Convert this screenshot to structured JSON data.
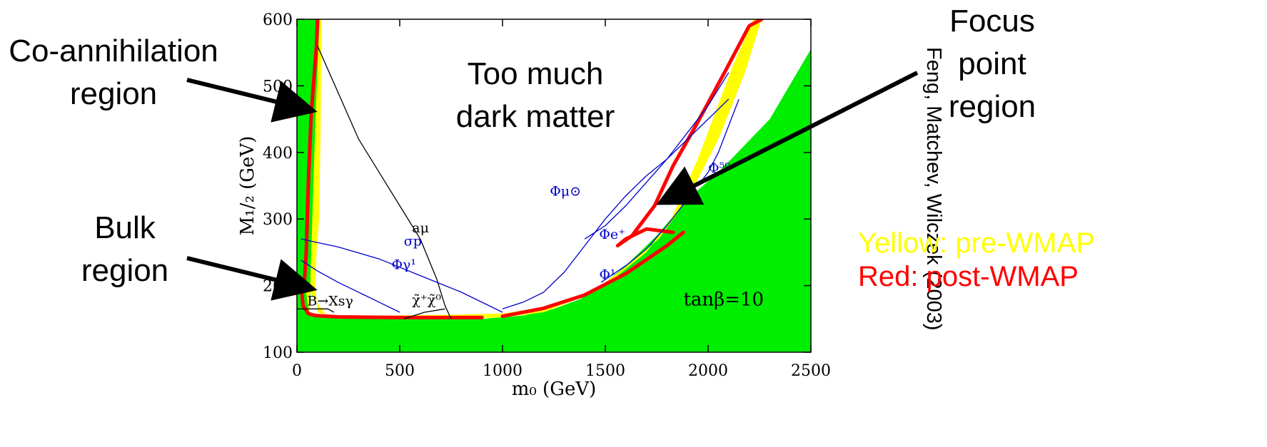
{
  "labels": {
    "coann": [
      "Co-annihilation",
      "region"
    ],
    "bulk": [
      "Bulk",
      "region"
    ],
    "focus": [
      "Focus",
      "point",
      "region"
    ],
    "toomuch": [
      "Too much",
      "dark matter"
    ],
    "credit": "Feng, Matchev, Wilczek (2003)",
    "legend_yellow": "Yellow: pre-WMAP",
    "legend_red": "Red: post-WMAP"
  },
  "colors": {
    "excluded": "#00ee00",
    "pre_wmap": "#ffff00",
    "post_wmap": "#ff0000",
    "contour_blue": "#0000cc",
    "contour_black": "#000000"
  },
  "chart_data": {
    "type": "area",
    "xlabel": "m₀ (GeV)",
    "ylabel": "M₁/₂ (GeV)",
    "xlim": [
      0,
      2500
    ],
    "ylim": [
      100,
      600
    ],
    "xticks": [
      "0",
      "500",
      "1000",
      "1500",
      "2000",
      "2500"
    ],
    "yticks": [
      "100",
      "200",
      "300",
      "400",
      "500",
      "600"
    ],
    "annotation": "tanβ=10",
    "series": [
      {
        "fill": "#00ee00",
        "x": [
          0,
          2500,
          2500,
          2300,
          2050,
          1900,
          1750,
          1600,
          1480,
          1380,
          1250,
          1100,
          900,
          700,
          400,
          200,
          60,
          90,
          120,
          0
        ],
        "y": [
          100,
          100,
          555,
          450,
          370,
          330,
          275,
          230,
          200,
          180,
          165,
          155,
          150,
          150,
          150,
          152,
          155,
          350,
          600,
          600
        ]
      },
      {
        "fill": "#ffff00",
        "x": [
          60,
          90,
          110,
          120,
          115,
          108,
          95,
          90,
          100,
          150,
          400,
          700,
          1000,
          1250,
          1500,
          1700,
          1820,
          1950,
          2120,
          2220,
          2260,
          2180,
          2050,
          1900,
          1760,
          1600,
          1460,
          1350,
          1200,
          1000,
          700,
          400,
          150,
          40
        ],
        "y": [
          155,
          450,
          600,
          600,
          430,
          300,
          250,
          200,
          160,
          155,
          155,
          156,
          158,
          170,
          200,
          250,
          300,
          390,
          530,
          600,
          600,
          520,
          420,
          330,
          270,
          228,
          196,
          178,
          160,
          152,
          150,
          150,
          152,
          200
        ]
      },
      {
        "name": "post-WMAP co-annihilation",
        "stroke": "#ff0000",
        "x": [
          35,
          45,
          55,
          68,
          80,
          95,
          100
        ],
        "y": [
          200,
          250,
          350,
          450,
          500,
          560,
          600
        ]
      },
      {
        "name": "post-WMAP bulk",
        "stroke": "#ff0000",
        "x": [
          20,
          30,
          55,
          90,
          200,
          500,
          900
        ],
        "y": [
          200,
          170,
          158,
          155,
          153,
          152,
          152
        ]
      },
      {
        "name": "post-WMAP funnel",
        "stroke": "#ff0000",
        "x": [
          1000,
          1200,
          1400,
          1600,
          1800,
          1880
        ],
        "y": [
          154,
          166,
          186,
          218,
          260,
          280
        ]
      },
      {
        "name": "post-WMAP focus point",
        "stroke": "#ff0000",
        "x": [
          1830,
          1700,
          1600,
          1560,
          1630,
          1740,
          1830,
          1940,
          2080,
          2200,
          2260
        ],
        "y": [
          280,
          285,
          270,
          260,
          275,
          320,
          380,
          440,
          520,
          590,
          600
        ]
      }
    ],
    "contours": [
      {
        "label": "aμ",
        "color": "#000000",
        "x": [
          100,
          200,
          300,
          420,
          520,
          600,
          680,
          720,
          750
        ],
        "y": [
          560,
          490,
          420,
          360,
          310,
          270,
          210,
          170,
          150
        ]
      },
      {
        "label": "σp",
        "color": "#0000cc",
        "x": [
          20,
          200,
          400,
          600,
          800,
          1000
        ],
        "y": [
          270,
          258,
          240,
          215,
          190,
          160
        ]
      },
      {
        "label": "Φγ¹",
        "color": "#0000cc",
        "x": [
          20,
          100,
          200,
          300,
          400,
          500
        ],
        "y": [
          238,
          222,
          205,
          190,
          175,
          160
        ]
      },
      {
        "label": "Φμ⊙",
        "color": "#0000cc",
        "x": [
          1000,
          1100,
          1200,
          1300,
          1400,
          1500,
          1600,
          1700,
          1800,
          1900,
          2000,
          2100
        ],
        "y": [
          165,
          175,
          190,
          220,
          260,
          300,
          335,
          365,
          390,
          420,
          450,
          480
        ]
      },
      {
        "label": "Φe⁺",
        "color": "#0000cc",
        "x": [
          1400,
          1500,
          1600,
          1700,
          1800,
          1900,
          2000,
          2100
        ],
        "y": [
          270,
          290,
          320,
          355,
          390,
          430,
          470,
          520
        ]
      },
      {
        "label": "Φ¹",
        "color": "#0000cc",
        "x": [
          1480,
          1600,
          1700,
          1800,
          1900
        ],
        "y": [
          205,
          230,
          255,
          290,
          330
        ]
      },
      {
        "label": "Φ⁵⁰",
        "color": "#0000cc",
        "x": [
          1950,
          2000,
          2050,
          2100,
          2150
        ],
        "y": [
          350,
          370,
          400,
          440,
          480
        ]
      },
      {
        "label": "χ̃⁺χ̃⁰",
        "color": "#000000",
        "x": [
          520,
          620,
          720
        ],
        "y": [
          150,
          160,
          165
        ]
      },
      {
        "label": "B→Xsγ",
        "color": "#000000",
        "x": [
          0,
          50,
          150,
          180
        ],
        "y": [
          165,
          165,
          165,
          160
        ]
      }
    ]
  }
}
